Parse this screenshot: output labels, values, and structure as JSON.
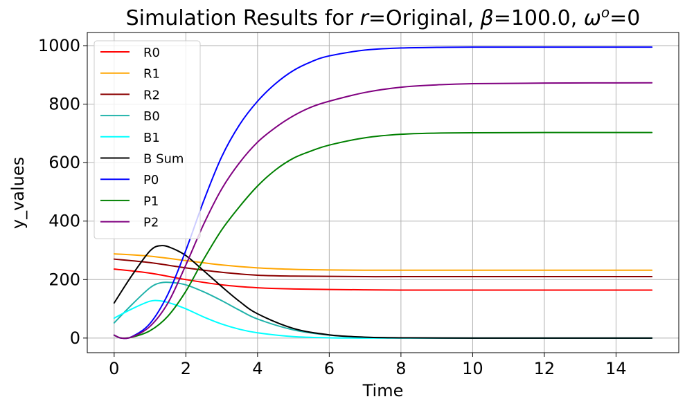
{
  "chart_data": {
    "type": "line",
    "title": "Simulation Results for r=Original, β=100.0, ωᵒ=0",
    "title_parts": {
      "prefix": "Simulation Results for ",
      "r_symbol": "r",
      "r_value": "=Original, ",
      "beta_symbol": "β",
      "beta_value": "=100.0, ",
      "omega_symbol": "ω",
      "omega_sup": "o",
      "omega_value": "=0"
    },
    "xlabel": "Time",
    "ylabel": "y_values",
    "xlim": [
      -0.75,
      15.75
    ],
    "ylim": [
      -50,
      1045
    ],
    "xticks": [
      0,
      2,
      4,
      6,
      8,
      10,
      12,
      14
    ],
    "yticks": [
      0,
      200,
      400,
      600,
      800,
      1000
    ],
    "grid": true,
    "legend_position": "upper-left",
    "series": [
      {
        "name": "R0",
        "color": "#ff0000",
        "x": [
          0,
          1,
          2,
          3,
          4,
          5,
          6,
          7,
          8,
          10,
          12,
          15
        ],
        "y": [
          236,
          222,
          200,
          182,
          172,
          168,
          166,
          165,
          164,
          164,
          164,
          164
        ]
      },
      {
        "name": "R1",
        "color": "#ffa500",
        "x": [
          0,
          1,
          2,
          3,
          4,
          5,
          6,
          7,
          8,
          10,
          12,
          15
        ],
        "y": [
          288,
          280,
          265,
          250,
          240,
          235,
          233,
          232,
          232,
          232,
          232,
          232
        ]
      },
      {
        "name": "R2",
        "color": "#8b0000",
        "x": [
          0,
          1,
          2,
          3,
          4,
          5,
          6,
          7,
          8,
          10,
          12,
          15
        ],
        "y": [
          270,
          258,
          240,
          225,
          215,
          212,
          211,
          210,
          210,
          210,
          210,
          210
        ]
      },
      {
        "name": "B0",
        "color": "#20b2aa",
        "x": [
          0,
          0.5,
          1,
          1.3,
          1.6,
          2,
          2.5,
          3,
          3.5,
          4,
          5,
          6,
          7,
          8,
          10,
          15
        ],
        "y": [
          52,
          115,
          172,
          189,
          190,
          182,
          158,
          128,
          95,
          65,
          28,
          10,
          3,
          1,
          0,
          0
        ]
      },
      {
        "name": "B1",
        "color": "#00ffff",
        "x": [
          0,
          0.5,
          1,
          1.3,
          1.6,
          2,
          2.5,
          3,
          3.5,
          4,
          5,
          6,
          7,
          8,
          10,
          15
        ],
        "y": [
          68,
          100,
          126,
          127,
          118,
          100,
          72,
          48,
          30,
          18,
          5,
          1,
          0,
          0,
          0,
          0
        ]
      },
      {
        "name": "B Sum",
        "color": "#000000",
        "x": [
          0,
          0.5,
          1,
          1.3,
          1.6,
          2,
          2.5,
          3,
          3.5,
          4,
          5,
          6,
          7,
          8,
          10,
          15
        ],
        "y": [
          120,
          215,
          298,
          316,
          308,
          282,
          230,
          176,
          125,
          83,
          33,
          11,
          3,
          1,
          0,
          0
        ]
      },
      {
        "name": "P0",
        "color": "#0000ff",
        "x": [
          0,
          0.2,
          0.5,
          1,
          1.5,
          2,
          2.5,
          3,
          3.5,
          4,
          4.5,
          5,
          5.5,
          6,
          7,
          8,
          9,
          10,
          12,
          15
        ],
        "y": [
          10,
          0,
          5,
          50,
          150,
          300,
          470,
          620,
          730,
          810,
          870,
          915,
          945,
          965,
          985,
          992,
          994,
          995,
          995,
          995
        ]
      },
      {
        "name": "P1",
        "color": "#008000",
        "x": [
          0,
          0.2,
          0.5,
          1,
          1.5,
          2,
          2.5,
          3,
          3.5,
          4,
          4.5,
          5,
          5.5,
          6,
          7,
          8,
          9,
          10,
          12,
          15
        ],
        "y": [
          10,
          0,
          3,
          25,
          75,
          160,
          270,
          370,
          450,
          520,
          575,
          615,
          640,
          660,
          685,
          697,
          701,
          702,
          703,
          703
        ]
      },
      {
        "name": "P2",
        "color": "#800080",
        "x": [
          0,
          0.2,
          0.5,
          1,
          1.5,
          2,
          2.5,
          3,
          3.5,
          4,
          4.5,
          5,
          5.5,
          6,
          7,
          8,
          9,
          10,
          12,
          15
        ],
        "y": [
          10,
          0,
          4,
          40,
          120,
          250,
          390,
          510,
          600,
          670,
          720,
          760,
          790,
          810,
          840,
          858,
          866,
          870,
          872,
          873
        ]
      }
    ]
  }
}
